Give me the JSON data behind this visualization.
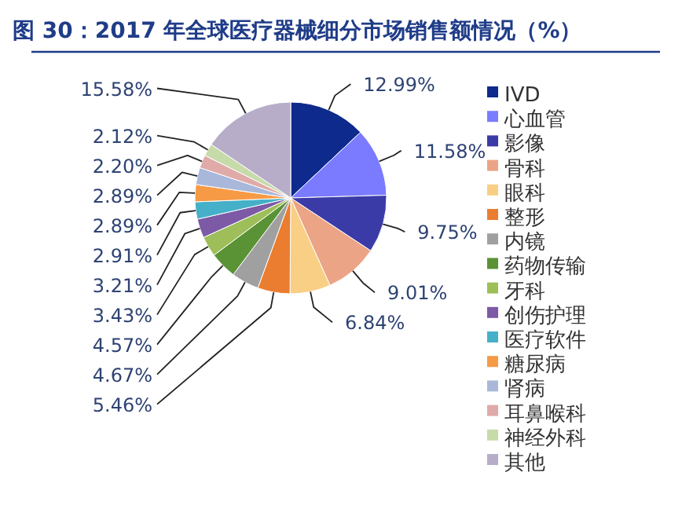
{
  "chart_data": {
    "type": "pie",
    "title": "图 30：2017 年全球医疗器械细分市场销售额情况（%）",
    "categories": [
      "IVD",
      "心血管",
      "影像",
      "骨科",
      "眼科",
      "整形",
      "内镜",
      "药物传输",
      "牙科",
      "创伤护理",
      "医疗软件",
      "糖尿病",
      "肾病",
      "耳鼻喉科",
      "神经外科",
      "其他"
    ],
    "values": [
      12.99,
      11.58,
      9.75,
      9.01,
      6.84,
      5.46,
      4.67,
      4.57,
      3.43,
      3.21,
      2.91,
      2.89,
      2.89,
      2.2,
      2.12,
      15.58
    ],
    "value_labels": [
      "12.99%",
      "11.58%",
      "9.75%",
      "9.01%",
      "6.84%",
      "5.46%",
      "4.67%",
      "4.57%",
      "3.43%",
      "3.21%",
      "2.91%",
      "2.89%",
      "2.89%",
      "2.20%",
      "2.12%",
      "15.58%"
    ],
    "colors": [
      "#0d2a8c",
      "#7b7bff",
      "#3b3ba8",
      "#eba486",
      "#f9cf85",
      "#ea7d30",
      "#a0a0a0",
      "#5a9236",
      "#9dbe59",
      "#7c5aa5",
      "#45b0c8",
      "#f79a46",
      "#a9b8da",
      "#e0aaa8",
      "#c7dbaa",
      "#b7adc9"
    ],
    "legend": "right"
  }
}
